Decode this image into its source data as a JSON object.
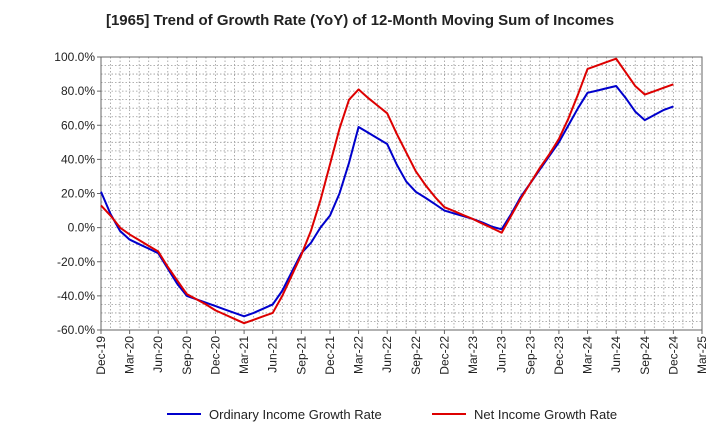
{
  "chart_data": {
    "type": "line",
    "title": "[1965]  Trend of Growth Rate (YoY) of 12-Month Moving Sum of Incomes",
    "xlabel": "",
    "ylabel": "",
    "ylim": [
      -60,
      100
    ],
    "yticks": [
      "100.0%",
      "80.0%",
      "60.0%",
      "40.0%",
      "20.0%",
      "0.0%",
      "-20.0%",
      "-40.0%",
      "-60.0%"
    ],
    "ytick_values": [
      100,
      80,
      60,
      40,
      20,
      0,
      -20,
      -40,
      -60
    ],
    "xticks": [
      "Dec-19",
      "Mar-20",
      "Jun-20",
      "Sep-20",
      "Dec-20",
      "Mar-21",
      "Jun-21",
      "Sep-21",
      "Dec-21",
      "Mar-22",
      "Jun-22",
      "Sep-22",
      "Dec-22",
      "Mar-23",
      "Jun-23",
      "Sep-23",
      "Dec-23",
      "Mar-24",
      "Jun-24",
      "Sep-24",
      "Dec-24",
      "Mar-25"
    ],
    "x": [
      "Dec-19",
      "Jan-20",
      "Feb-20",
      "Mar-20",
      "Apr-20",
      "May-20",
      "Jun-20",
      "Jul-20",
      "Aug-20",
      "Sep-20",
      "Oct-20",
      "Nov-20",
      "Dec-20",
      "Jan-21",
      "Feb-21",
      "Mar-21",
      "Apr-21",
      "May-21",
      "Jun-21",
      "Jul-21",
      "Aug-21",
      "Sep-21",
      "Oct-21",
      "Nov-21",
      "Dec-21",
      "Jan-22",
      "Feb-22",
      "Mar-22",
      "Apr-22",
      "May-22",
      "Jun-22",
      "Jul-22",
      "Aug-22",
      "Sep-22",
      "Oct-22",
      "Nov-22",
      "Dec-22",
      "Jan-23",
      "Feb-23",
      "Mar-23",
      "Apr-23",
      "May-23",
      "Jun-23",
      "Jul-23",
      "Aug-23",
      "Sep-23",
      "Oct-23",
      "Nov-23",
      "Dec-23",
      "Jan-24",
      "Feb-24",
      "Mar-24",
      "Apr-24",
      "May-24",
      "Jun-24",
      "Jul-24",
      "Aug-24",
      "Sep-24",
      "Oct-24",
      "Nov-24",
      "Dec-24"
    ],
    "series": [
      {
        "name": "Ordinary Income Growth Rate",
        "color": "#0000cc",
        "values": [
          21,
          8,
          -2,
          -7,
          -9.7,
          -12.3,
          -15,
          -24,
          -33,
          -40,
          -42,
          -44,
          -46,
          -48,
          -50,
          -52,
          -50,
          -47.5,
          -45,
          -37,
          -26,
          -15,
          -9,
          0,
          7,
          20,
          38,
          59,
          55.7,
          52.3,
          49,
          37,
          27,
          21,
          17.5,
          13.8,
          10,
          8.3,
          6.7,
          5,
          3,
          0.5,
          -1,
          8,
          18,
          26,
          34,
          42,
          50,
          60,
          70,
          79,
          80.3,
          81.7,
          83,
          76,
          68,
          63,
          66,
          69,
          71
        ]
      },
      {
        "name": "Net Income Growth Rate",
        "color": "#dd0000",
        "values": [
          13,
          7,
          0,
          -4,
          -7.3,
          -10.7,
          -14,
          -23,
          -31,
          -39,
          -42,
          -45,
          -48.5,
          -51,
          -53.5,
          -56,
          -54,
          -52,
          -50,
          -40,
          -28,
          -16,
          -2,
          16,
          37,
          58,
          75,
          81,
          76,
          71.5,
          67,
          55,
          44,
          33,
          25,
          18,
          12,
          9.7,
          7.3,
          5,
          2.3,
          -0.3,
          -3,
          7,
          17,
          26,
          35,
          43,
          52,
          64,
          78,
          93,
          95,
          97,
          99,
          91,
          83,
          78,
          80,
          82,
          84
        ]
      }
    ],
    "grid": true,
    "legend": "bottom"
  }
}
